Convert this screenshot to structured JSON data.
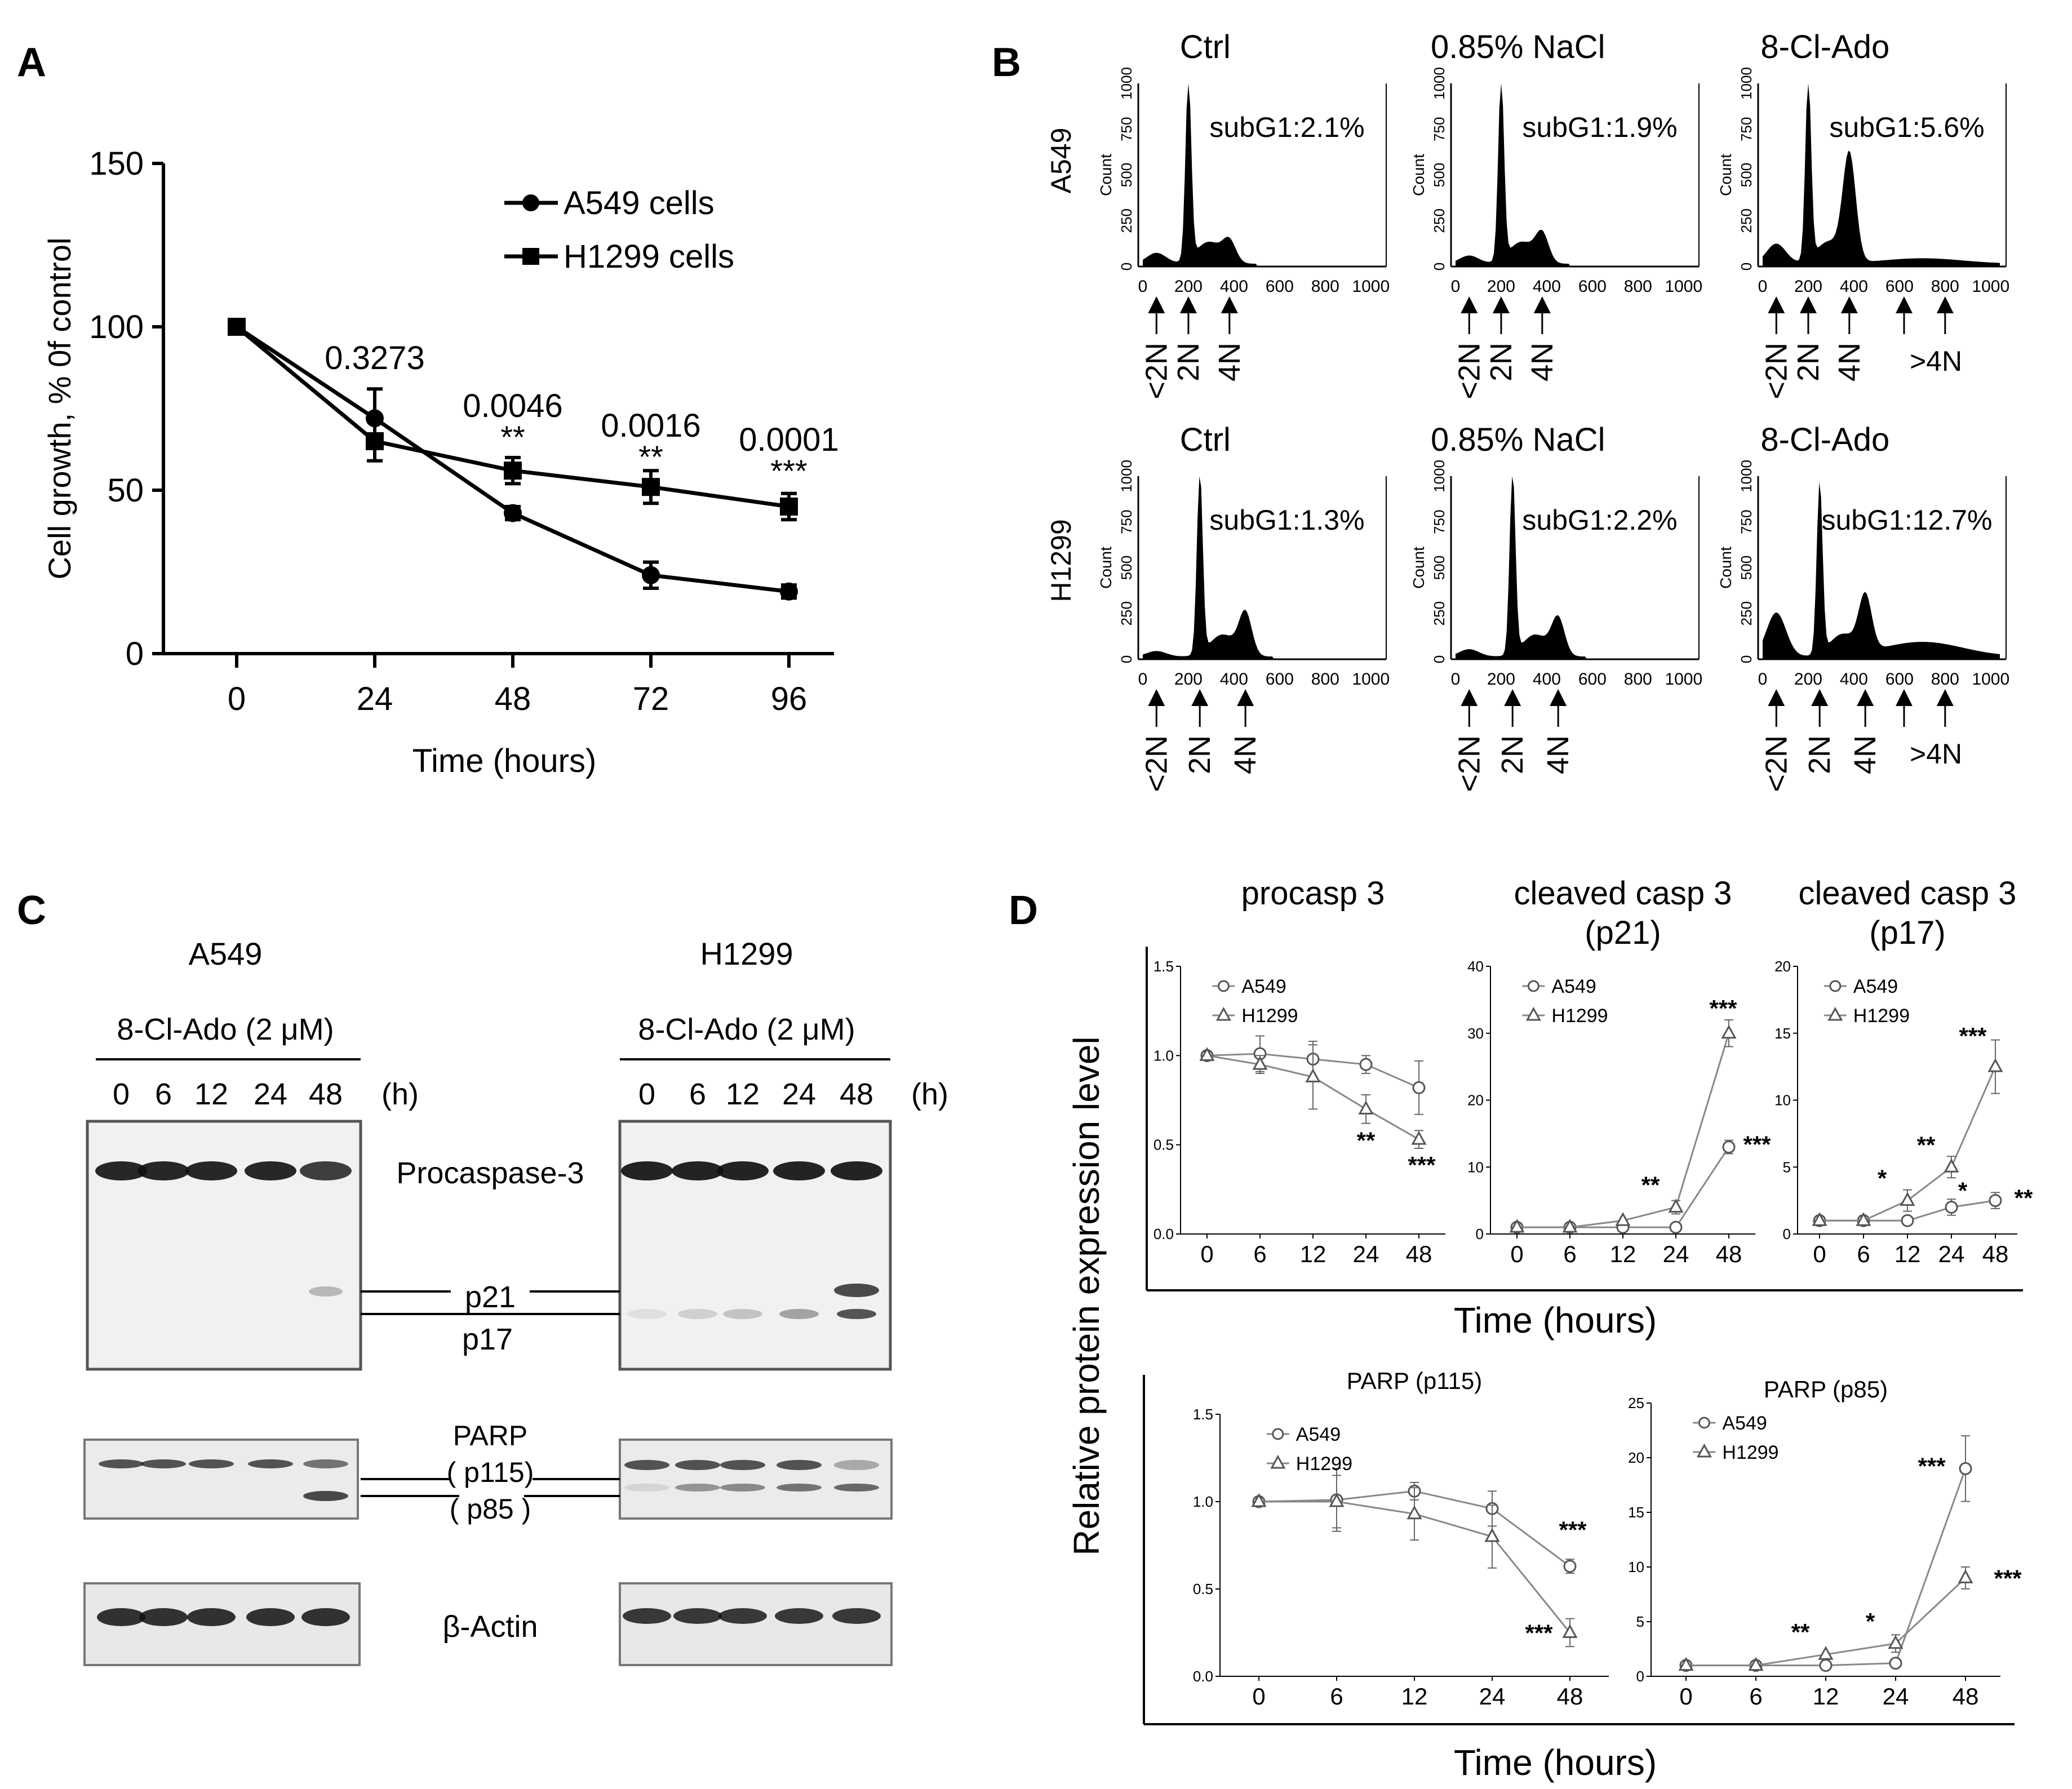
{
  "panel_labels": {
    "a": "A",
    "b": "B",
    "c": "C",
    "d": "D"
  },
  "chart_data": [
    {
      "id": "A",
      "type": "line",
      "title": "",
      "xlabel": "Time (hours)",
      "ylabel": "Cell growth, % 0f control",
      "x": [
        0,
        24,
        48,
        72,
        96
      ],
      "xticks": [
        "0",
        "24",
        "48",
        "72",
        "96"
      ],
      "yticks": [
        "0",
        "50",
        "100",
        "150"
      ],
      "ylim": [
        0,
        150
      ],
      "series": [
        {
          "name": "A549 cells",
          "marker": "circle",
          "values": [
            100,
            72,
            43,
            24,
            19
          ],
          "errors": [
            0,
            9,
            2,
            4,
            2
          ]
        },
        {
          "name": "H1299 cells",
          "marker": "square",
          "values": [
            100,
            65,
            56,
            51,
            45
          ],
          "errors": [
            0,
            6,
            4,
            5,
            4
          ]
        }
      ],
      "annotations": [
        {
          "x": 24,
          "text": "0.3273",
          "stars": ""
        },
        {
          "x": 48,
          "text": "0.0046",
          "stars": "**"
        },
        {
          "x": 72,
          "text": "0.0016",
          "stars": "**"
        },
        {
          "x": 96,
          "text": "0.0001",
          "stars": "***"
        }
      ]
    },
    {
      "id": "B",
      "type": "histogram",
      "ylabel": "Count",
      "xticks": [
        "0",
        "200",
        "400",
        "600",
        "800",
        "1000"
      ],
      "yticks": [
        "0",
        "250",
        "500",
        "750",
        "1000"
      ],
      "row_labels": [
        "A549",
        "H1299"
      ],
      "panels": [
        {
          "row": "A549",
          "title": "Ctrl",
          "subg1": "subG1:2.1%",
          "peaks": {
            "g1": 1000,
            "g2": 110,
            "sub": 60,
            "poly": 0
          },
          "markers": [
            "<2N",
            "2N",
            "4N"
          ]
        },
        {
          "row": "A549",
          "title": "0.85% NaCl",
          "subg1": "subG1:1.9%",
          "peaks": {
            "g1": 1000,
            "g2": 150,
            "sub": 45,
            "poly": 0
          },
          "markers": [
            "<2N",
            "2N",
            "4N"
          ]
        },
        {
          "row": "A549",
          "title": "8-Cl-Ado",
          "subg1": "subG1:5.6%",
          "peaks": {
            "g1": 1000,
            "g2": 580,
            "sub": 110,
            "poly": 30
          },
          "markers": [
            "<2N",
            "2N",
            "4N",
            ">4N"
          ]
        },
        {
          "row": "H1299",
          "title": "Ctrl",
          "subg1": "subG1:1.3%",
          "peaks": {
            "g1": 1000,
            "g2": 230,
            "sub": 30,
            "poly": 0
          },
          "markers": [
            "<2N",
            "2N",
            "4N"
          ]
        },
        {
          "row": "H1299",
          "title": "0.85% NaCl",
          "subg1": "subG1:2.2%",
          "peaks": {
            "g1": 1000,
            "g2": 200,
            "sub": 40,
            "poly": 0
          },
          "markers": [
            "<2N",
            "2N",
            "4N"
          ]
        },
        {
          "row": "H1299",
          "title": "8-Cl-Ado",
          "subg1": "subG1:12.7%",
          "peaks": {
            "g1": 940,
            "g2": 300,
            "sub": 240,
            "poly": 80
          },
          "markers": [
            "<2N",
            "2N",
            "4N",
            ">4N"
          ]
        }
      ]
    },
    {
      "id": "D",
      "type": "line",
      "ylabel": "Relative protein expression level",
      "xlabel": "Time (hours)",
      "xticks": [
        "0",
        "6",
        "12",
        "24",
        "48"
      ],
      "legend": [
        "A549",
        "H1299"
      ],
      "panels": [
        {
          "title": "procasp 3",
          "subtitle": "",
          "ylim": [
            0,
            1.5
          ],
          "yticks": [
            "0.0",
            "0.5",
            "1.0",
            "1.5"
          ],
          "A549": [
            1.0,
            1.01,
            0.98,
            0.95,
            0.82
          ],
          "A549_err": [
            0.02,
            0.1,
            0.1,
            0.05,
            0.15
          ],
          "H1299": [
            1.0,
            0.95,
            0.88,
            0.7,
            0.53
          ],
          "H1299_err": [
            0.02,
            0.05,
            0.18,
            0.08,
            0.05
          ],
          "stars": [
            {
              "xi": 3,
              "series": "H1299",
              "text": "**"
            },
            {
              "xi": 4,
              "series": "H1299",
              "text": "***"
            }
          ]
        },
        {
          "title": "cleaved casp 3",
          "subtitle": "(p21)",
          "ylim": [
            0,
            40
          ],
          "yticks": [
            "0",
            "10",
            "20",
            "30",
            "40"
          ],
          "A549": [
            1,
            1,
            1,
            1,
            13
          ],
          "A549_err": [
            0,
            0,
            0,
            0,
            1
          ],
          "H1299": [
            1,
            1,
            2,
            4,
            30
          ],
          "H1299_err": [
            0,
            0,
            0,
            1,
            2
          ],
          "stars": [
            {
              "xi": 3,
              "series": "H1299",
              "text": "**"
            },
            {
              "xi": 4,
              "series": "H1299",
              "text": "***"
            },
            {
              "xi": 4,
              "series": "A549",
              "text": "***"
            }
          ]
        },
        {
          "title": "cleaved casp 3",
          "subtitle": "(p17)",
          "ylim": [
            0,
            20
          ],
          "yticks": [
            "0",
            "5",
            "10",
            "15",
            "20"
          ],
          "A549": [
            1,
            1,
            1,
            2,
            2.5
          ],
          "A549_err": [
            0,
            0,
            0.3,
            0.6,
            0.6
          ],
          "H1299": [
            1,
            1,
            2.5,
            5,
            12.5
          ],
          "H1299_err": [
            0,
            0,
            0.8,
            0.8,
            2
          ],
          "stars": [
            {
              "xi": 2,
              "series": "H1299",
              "text": "*"
            },
            {
              "xi": 3,
              "series": "H1299",
              "text": "**"
            },
            {
              "xi": 4,
              "series": "H1299",
              "text": "***"
            },
            {
              "xi": 3,
              "series": "A549",
              "text": "*"
            },
            {
              "xi": 4,
              "series": "A549",
              "text": "**"
            }
          ]
        },
        {
          "title": "PARP  (p115)",
          "subtitle": "",
          "ylim": [
            0,
            1.5
          ],
          "yticks": [
            "0.0",
            "0.5",
            "1.0",
            "1.5"
          ],
          "A549": [
            1.0,
            1.01,
            1.06,
            0.96,
            0.63
          ],
          "A549_err": [
            0.02,
            0.18,
            0.05,
            0.1,
            0.04
          ],
          "H1299": [
            1.0,
            1.0,
            0.93,
            0.8,
            0.25
          ],
          "H1299_err": [
            0.02,
            0.15,
            0.15,
            0.18,
            0.08
          ],
          "stars": [
            {
              "xi": 4,
              "series": "A549",
              "text": "***"
            },
            {
              "xi": 4,
              "series": "H1299",
              "text": "***"
            }
          ]
        },
        {
          "title": "PARP (p85)",
          "subtitle": "",
          "ylim": [
            0,
            25
          ],
          "yticks": [
            "0",
            "5",
            "10",
            "15",
            "20",
            "25"
          ],
          "A549": [
            1,
            1,
            1,
            1.2,
            19
          ],
          "A549_err": [
            0,
            0,
            0,
            0,
            3
          ],
          "H1299": [
            1,
            1,
            2,
            3,
            9
          ],
          "H1299_err": [
            0,
            0,
            0,
            0.8,
            1
          ],
          "stars": [
            {
              "xi": 2,
              "series": "H1299",
              "text": "**"
            },
            {
              "xi": 3,
              "series": "H1299",
              "text": "*"
            },
            {
              "xi": 4,
              "series": "A549",
              "text": "***"
            },
            {
              "xi": 4,
              "series": "H1299",
              "text": "***"
            }
          ]
        }
      ]
    }
  ],
  "western": {
    "cells": [
      "A549",
      "H1299"
    ],
    "treatment": "8-Cl-Ado (2 μM)",
    "timepoints": [
      "0",
      "6",
      "12",
      "24",
      "48"
    ],
    "unit": "(h)",
    "labels": {
      "procaspase": "Procaspase-3",
      "p21": "p21",
      "p17": "p17",
      "parp": "PARP",
      "p115": "( p115)",
      "p85": "( p85 )",
      "actin": "β-Actin"
    }
  }
}
